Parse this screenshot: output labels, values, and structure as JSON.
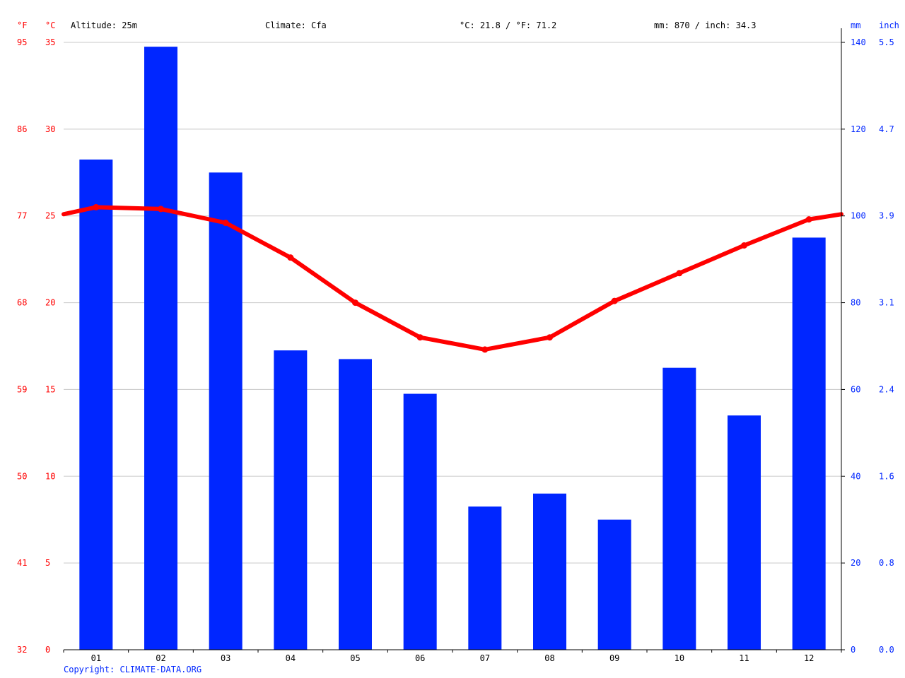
{
  "header": {
    "unit_f": "°F",
    "unit_c": "°C",
    "altitude": "Altitude: 25m",
    "climate": "Climate: Cfa",
    "temp_avg": "°C: 21.8 / °F: 71.2",
    "precip_total": "mm: 870 / inch: 34.3",
    "unit_mm": "mm",
    "unit_inch": "inch"
  },
  "copyright": "Copyright: CLIMATE-DATA.ORG",
  "colors": {
    "temperature": "#ff0000",
    "precipitation": "#0026ff",
    "grid": "#c8c8c8",
    "copyright": "#0026ff"
  },
  "chart_data": {
    "type": "bar",
    "categories": [
      "01",
      "02",
      "03",
      "04",
      "05",
      "06",
      "07",
      "08",
      "09",
      "10",
      "11",
      "12"
    ],
    "series": [
      {
        "values": [
          113,
          139,
          110,
          69,
          67,
          59,
          33,
          36,
          30,
          65,
          54,
          95
        ],
        "unit": "mm",
        "chart_type": "bar",
        "axis": "right"
      },
      {
        "values": [
          25.5,
          25.4,
          24.6,
          22.6,
          20.0,
          18.0,
          17.3,
          18.0,
          20.1,
          21.7,
          23.3,
          24.8
        ],
        "unit": "°C",
        "chart_type": "line",
        "axis": "left"
      }
    ],
    "temp_edge_start": 25.1,
    "temp_edge_end": 25.1,
    "y_left_c_ticks": [
      "0",
      "5",
      "10",
      "15",
      "20",
      "25",
      "30",
      "35"
    ],
    "y_left_f_ticks": [
      "32",
      "41",
      "50",
      "59",
      "68",
      "77",
      "86",
      "95"
    ],
    "y_right_mm_ticks": [
      "0",
      "20",
      "40",
      "60",
      "80",
      "100",
      "120",
      "140"
    ],
    "y_right_inch_ticks": [
      "0.0",
      "0.8",
      "1.6",
      "2.4",
      "3.1",
      "3.9",
      "4.7",
      "5.5"
    ],
    "ylim_c": [
      0,
      35
    ],
    "ylim_mm": [
      0,
      140
    ],
    "grid": true
  }
}
